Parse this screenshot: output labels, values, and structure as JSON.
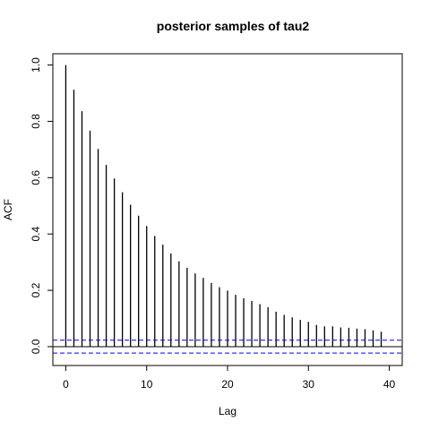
{
  "chart_data": {
    "type": "bar",
    "title": "posterior samples of tau2",
    "xlabel": "Lag",
    "ylabel": "ACF",
    "xlim": [
      -1.6,
      41.6
    ],
    "ylim": [
      -0.067,
      1.04
    ],
    "xticks": [
      0,
      10,
      20,
      30,
      40
    ],
    "xtick_labels": [
      "0",
      "10",
      "20",
      "30",
      "40"
    ],
    "yticks": [
      0.0,
      0.2,
      0.4,
      0.6,
      0.8,
      1.0
    ],
    "ytick_labels": [
      "0.0",
      "0.2",
      "0.4",
      "0.6",
      "0.8",
      "1.0"
    ],
    "lags": [
      0,
      1,
      2,
      3,
      4,
      5,
      6,
      7,
      8,
      9,
      10,
      11,
      12,
      13,
      14,
      15,
      16,
      17,
      18,
      19,
      20,
      21,
      22,
      23,
      24,
      25,
      26,
      27,
      28,
      29,
      30,
      31,
      32,
      33,
      34,
      35,
      36,
      37,
      38,
      39
    ],
    "acf": [
      1.0,
      0.912,
      0.836,
      0.767,
      0.702,
      0.645,
      0.597,
      0.548,
      0.504,
      0.465,
      0.428,
      0.393,
      0.362,
      0.331,
      0.303,
      0.28,
      0.26,
      0.244,
      0.226,
      0.211,
      0.199,
      0.184,
      0.172,
      0.162,
      0.151,
      0.14,
      0.124,
      0.113,
      0.104,
      0.095,
      0.088,
      0.077,
      0.072,
      0.072,
      0.068,
      0.067,
      0.064,
      0.062,
      0.058,
      0.053
    ],
    "confidence_bounds": [
      0.023,
      -0.023
    ],
    "colors": {
      "bars": "#000000",
      "confidence": "#0000ff",
      "zero_line": "#000000"
    },
    "grid": false,
    "legend": "none"
  }
}
